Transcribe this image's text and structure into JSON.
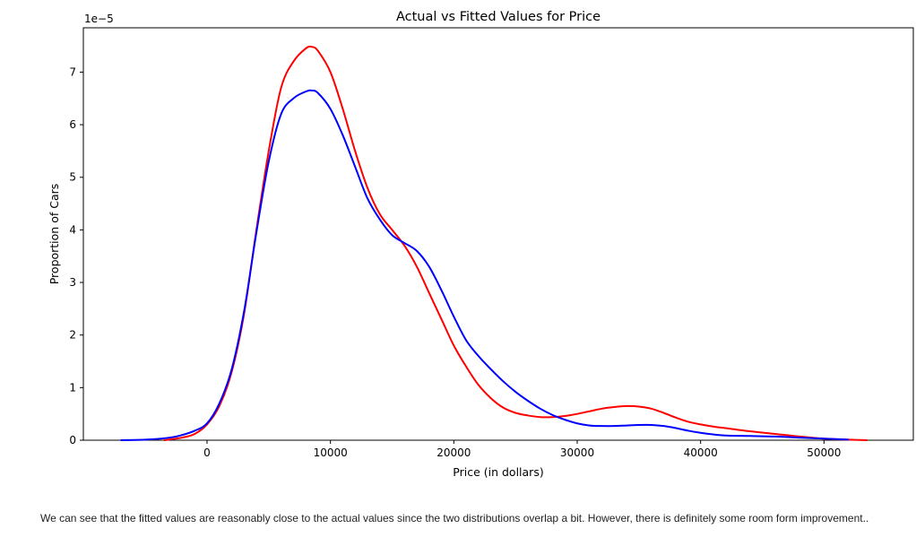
{
  "chart_data": {
    "type": "line",
    "title": "Actual vs Fitted Values for Price",
    "xlabel": "Price (in dollars)",
    "ylabel": "Proportion of Cars",
    "y_offset_text": "1e−5",
    "xlim": [
      -7000,
      55000
    ],
    "ylim": [
      0,
      7.8
    ],
    "y_scale_note": "values in units of 1e-5",
    "x_ticks": [
      0,
      10000,
      20000,
      30000,
      40000,
      50000
    ],
    "x_tick_labels": [
      "0",
      "10000",
      "20000",
      "30000",
      "40000",
      "50000"
    ],
    "y_ticks": [
      0,
      1,
      2,
      3,
      4,
      5,
      6,
      7
    ],
    "y_tick_labels": [
      "0",
      "1",
      "2",
      "3",
      "4",
      "5",
      "6",
      "7"
    ],
    "grid": false,
    "series": [
      {
        "color": "#ff0000",
        "x": [
          -3500,
          -2000,
          -1000,
          0,
          1000,
          2000,
          3000,
          4000,
          5000,
          6000,
          7000,
          8000,
          8500,
          9000,
          10000,
          11000,
          12000,
          13000,
          14000,
          15000,
          16000,
          17000,
          18000,
          19000,
          20000,
          21000,
          22000,
          23000,
          24000,
          25000,
          26000,
          27000,
          28000,
          29000,
          30000,
          31000,
          32000,
          33000,
          34000,
          35000,
          36000,
          37000,
          38000,
          39000,
          40000,
          41000,
          42000,
          44000,
          46000,
          48000,
          50000,
          52000,
          53500
        ],
        "y": [
          0.0,
          0.05,
          0.12,
          0.3,
          0.65,
          1.3,
          2.4,
          4.0,
          5.5,
          6.7,
          7.2,
          7.45,
          7.48,
          7.4,
          7.0,
          6.3,
          5.5,
          4.8,
          4.3,
          4.0,
          3.7,
          3.3,
          2.8,
          2.3,
          1.8,
          1.4,
          1.05,
          0.8,
          0.62,
          0.52,
          0.47,
          0.44,
          0.44,
          0.46,
          0.5,
          0.55,
          0.6,
          0.63,
          0.65,
          0.64,
          0.6,
          0.52,
          0.43,
          0.35,
          0.3,
          0.26,
          0.23,
          0.17,
          0.12,
          0.07,
          0.03,
          0.01,
          0.0
        ]
      },
      {
        "color": "#0000ff",
        "x": [
          -7000,
          -5000,
          -3000,
          -2000,
          -1000,
          0,
          1000,
          2000,
          3000,
          4000,
          5000,
          6000,
          7000,
          8000,
          8500,
          9000,
          10000,
          11000,
          12000,
          13000,
          14000,
          15000,
          16000,
          17000,
          18000,
          19000,
          20000,
          21000,
          22000,
          23000,
          24000,
          25000,
          26000,
          27000,
          28000,
          29000,
          30000,
          31000,
          32000,
          33000,
          34000,
          35000,
          36000,
          37000,
          38000,
          39000,
          40000,
          41000,
          42000,
          44000,
          46000,
          48000,
          50000,
          52000
        ],
        "y": [
          0.0,
          0.01,
          0.05,
          0.1,
          0.18,
          0.32,
          0.7,
          1.35,
          2.45,
          3.95,
          5.3,
          6.2,
          6.5,
          6.63,
          6.65,
          6.6,
          6.3,
          5.8,
          5.2,
          4.6,
          4.2,
          3.9,
          3.75,
          3.6,
          3.3,
          2.85,
          2.35,
          1.9,
          1.6,
          1.35,
          1.12,
          0.92,
          0.75,
          0.6,
          0.48,
          0.39,
          0.32,
          0.28,
          0.27,
          0.27,
          0.28,
          0.29,
          0.29,
          0.27,
          0.23,
          0.18,
          0.14,
          0.11,
          0.09,
          0.08,
          0.07,
          0.05,
          0.03,
          0.01
        ]
      }
    ]
  },
  "caption": "We can see that the fitted values are reasonably close to the actual values since the two distributions overlap a bit. However, there is definitely some room form improvement.."
}
